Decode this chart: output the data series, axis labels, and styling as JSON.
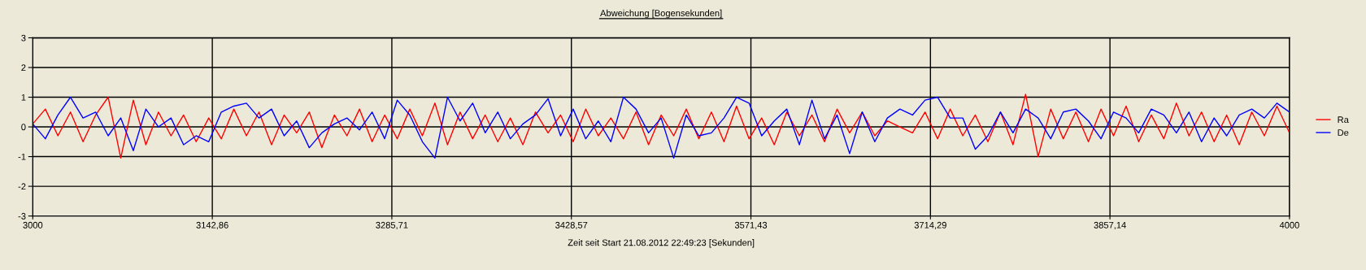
{
  "chart_data": {
    "type": "line",
    "title": "Abweichung [Bogensekunden]",
    "xlabel": "Zeit seit Start 21.08.2012 22:49:23 [Sekunden]",
    "x": [
      3000,
      3010,
      3020,
      3030,
      3040,
      3050,
      3060,
      3070,
      3080,
      3090,
      3100,
      3110,
      3120,
      3130,
      3140,
      3150,
      3160,
      3170,
      3180,
      3190,
      3200,
      3210,
      3220,
      3230,
      3240,
      3250,
      3260,
      3270,
      3280,
      3290,
      3300,
      3310,
      3320,
      3330,
      3340,
      3350,
      3360,
      3370,
      3380,
      3390,
      3400,
      3410,
      3420,
      3430,
      3440,
      3450,
      3460,
      3470,
      3480,
      3490,
      3500,
      3510,
      3520,
      3530,
      3540,
      3550,
      3560,
      3570,
      3580,
      3590,
      3600,
      3610,
      3620,
      3630,
      3640,
      3650,
      3660,
      3670,
      3680,
      3690,
      3700,
      3710,
      3720,
      3730,
      3740,
      3750,
      3760,
      3770,
      3780,
      3790,
      3800,
      3810,
      3820,
      3830,
      3840,
      3850,
      3860,
      3870,
      3880,
      3890,
      3900,
      3910,
      3920,
      3930,
      3940,
      3950,
      3960,
      3970,
      3980,
      3990,
      4000
    ],
    "series": [
      {
        "name": "Ra",
        "color": "#ff0000",
        "values": [
          0.1,
          0.6,
          -0.3,
          0.5,
          -0.5,
          0.4,
          1.0,
          -1.05,
          0.9,
          -0.6,
          0.5,
          -0.3,
          0.4,
          -0.5,
          0.3,
          -0.4,
          0.6,
          -0.3,
          0.5,
          -0.6,
          0.4,
          -0.2,
          0.5,
          -0.7,
          0.4,
          -0.3,
          0.6,
          -0.5,
          0.4,
          -0.4,
          0.6,
          -0.3,
          0.8,
          -0.6,
          0.5,
          -0.4,
          0.4,
          -0.5,
          0.3,
          -0.6,
          0.5,
          -0.2,
          0.4,
          -0.5,
          0.6,
          -0.3,
          0.3,
          -0.4,
          0.5,
          -0.6,
          0.4,
          -0.3,
          0.6,
          -0.4,
          0.5,
          -0.5,
          0.7,
          -0.4,
          0.3,
          -0.6,
          0.5,
          -0.3,
          0.4,
          -0.5,
          0.6,
          -0.2,
          0.5,
          -0.3,
          0.2,
          0.0,
          -0.2,
          0.5,
          -0.4,
          0.6,
          -0.3,
          0.4,
          -0.5,
          0.5,
          -0.6,
          1.1,
          -1.0,
          0.6,
          -0.4,
          0.5,
          -0.5,
          0.6,
          -0.3,
          0.7,
          -0.5,
          0.4,
          -0.4,
          0.8,
          -0.3,
          0.5,
          -0.5,
          0.4,
          -0.6,
          0.5,
          -0.3,
          0.7,
          -0.2
        ]
      },
      {
        "name": "De",
        "color": "#0000ff",
        "values": [
          0.1,
          -0.4,
          0.4,
          1.0,
          0.3,
          0.5,
          -0.3,
          0.3,
          -0.8,
          0.6,
          0.0,
          0.3,
          -0.6,
          -0.3,
          -0.5,
          0.5,
          0.7,
          0.8,
          0.3,
          0.6,
          -0.3,
          0.2,
          -0.7,
          -0.2,
          0.1,
          0.3,
          -0.1,
          0.5,
          -0.4,
          0.9,
          0.4,
          -0.5,
          -1.05,
          1.0,
          0.2,
          0.8,
          -0.2,
          0.5,
          -0.4,
          0.1,
          0.4,
          0.95,
          -0.3,
          0.6,
          -0.4,
          0.2,
          -0.5,
          1.0,
          0.6,
          -0.2,
          0.3,
          -1.05,
          0.4,
          -0.3,
          -0.2,
          0.3,
          1.0,
          0.8,
          -0.3,
          0.2,
          0.6,
          -0.6,
          0.9,
          -0.4,
          0.4,
          -0.9,
          0.5,
          -0.5,
          0.3,
          0.6,
          0.4,
          0.9,
          1.0,
          0.3,
          0.3,
          -0.75,
          -0.3,
          0.5,
          -0.2,
          0.6,
          0.3,
          -0.4,
          0.5,
          0.6,
          0.2,
          -0.4,
          0.5,
          0.3,
          -0.2,
          0.6,
          0.4,
          -0.2,
          0.5,
          -0.5,
          0.3,
          -0.3,
          0.4,
          0.6,
          0.3,
          0.8,
          0.5
        ]
      }
    ],
    "xlim": [
      3000,
      4000
    ],
    "ylim": [
      -3,
      3
    ],
    "xticks": [
      3000,
      {
        "value": 3142.86,
        "label": "3142,86"
      },
      {
        "value": 3285.71,
        "label": "3285,71"
      },
      {
        "value": 3428.57,
        "label": "3428,57"
      },
      {
        "value": 3571.43,
        "label": "3571,43"
      },
      {
        "value": 3714.29,
        "label": "3714,29"
      },
      {
        "value": 3857.14,
        "label": "3857,14"
      },
      4000
    ],
    "yticks": [
      -3,
      -2,
      -1,
      0,
      1,
      2,
      3
    ],
    "grid": true,
    "legend": "right",
    "marker": "none",
    "line_style": "solid"
  }
}
